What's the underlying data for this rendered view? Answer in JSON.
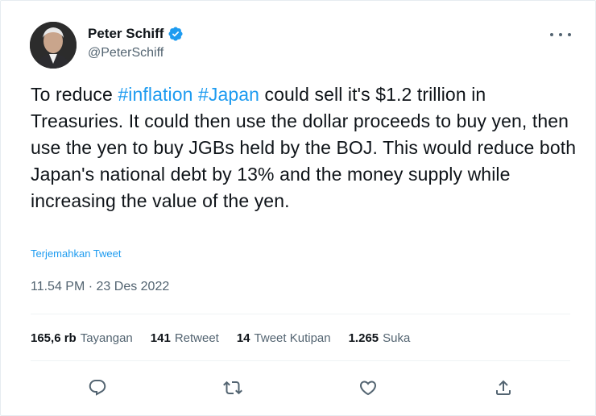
{
  "author": {
    "name": "Peter Schiff",
    "handle": "@PeterSchiff"
  },
  "tweet": {
    "text_before": "To reduce ",
    "hashtag_1": "#inflation",
    "space": " ",
    "hashtag_2": "#Japan",
    "text_after": " could sell it's $1.2 trillion in Treasuries. It could then use the dollar proceeds to buy yen, then use the yen to buy JGBs held by the BOJ. This would reduce both Japan's national debt by 13% and the money supply while increasing the value of the yen."
  },
  "translate_label": "Terjemahkan Tweet",
  "timestamp": "11.54 PM · 23 Des 2022",
  "stats": {
    "views_count": "165,6 rb",
    "views_label": "Tayangan",
    "retweets_count": "141",
    "retweets_label": "Retweet",
    "quotes_count": "14",
    "quotes_label": "Tweet Kutipan",
    "likes_count": "1.265",
    "likes_label": "Suka"
  },
  "colors": {
    "accent": "#1d9bf0",
    "text": "#0f1419",
    "muted": "#536471"
  },
  "icons": {
    "verified": "verified-badge-icon",
    "more": "more-icon",
    "reply": "reply-icon",
    "retweet": "retweet-icon",
    "like": "like-icon",
    "share": "share-icon"
  }
}
